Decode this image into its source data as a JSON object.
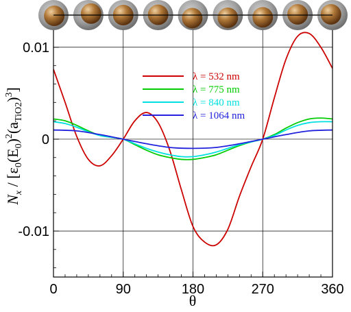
{
  "chart_data": {
    "type": "line",
    "xlabel": "θ",
    "ylabel": "N_x / [ε₀(E₀)²(a_TiO2)³]",
    "ylabel_parts": {
      "lead": "N",
      "lead_sub": "x",
      "mid1": " / [ε",
      "mid1_sub": "0",
      "mid2": "(E",
      "mid2_sub": "0",
      "mid3": ")",
      "mid3_sup": "2",
      "mid4": "(a",
      "mid4_sub": "TiO2",
      "mid5": ")",
      "mid5_sup": "3",
      "tail": "]"
    },
    "xlim": [
      0,
      360
    ],
    "ylim": [
      -0.015,
      0.0135
    ],
    "xticks": [
      0,
      90,
      180,
      270,
      360
    ],
    "xtick_labels": [
      "0",
      "90",
      "180",
      "270",
      "360"
    ],
    "yticks": [
      0.01,
      0,
      -0.01
    ],
    "ytick_labels": [
      "0.01",
      "0",
      "-0.01"
    ],
    "grid": true,
    "legend_position": "upper-center",
    "series": [
      {
        "name": "λ =  532 nm",
        "color": "#cc0000",
        "x": [
          0,
          15,
          30,
          45,
          60,
          75,
          90,
          105,
          120,
          135,
          150,
          165,
          180,
          195,
          210,
          225,
          240,
          255,
          270,
          285,
          300,
          315,
          330,
          345,
          360
        ],
        "y": [
          0.0076,
          0.004,
          0.0003,
          -0.0022,
          -0.0029,
          -0.0018,
          0.0,
          0.002,
          0.0029,
          0.0018,
          -0.0012,
          -0.0055,
          -0.0095,
          -0.0112,
          -0.0115,
          -0.0098,
          -0.0062,
          -0.003,
          0.0,
          0.0045,
          0.0087,
          0.0112,
          0.0115,
          0.01,
          0.0077
        ]
      },
      {
        "name": "λ = 775 nm",
        "color": "#00cc00",
        "x": [
          0,
          15,
          30,
          45,
          60,
          75,
          90,
          105,
          120,
          135,
          150,
          165,
          180,
          195,
          210,
          225,
          240,
          255,
          270,
          285,
          300,
          315,
          330,
          345,
          360
        ],
        "y": [
          0.0022,
          0.002,
          0.0015,
          0.0009,
          0.0004,
          0.0002,
          0.0,
          -0.0006,
          -0.0012,
          -0.0017,
          -0.002,
          -0.0022,
          -0.0022,
          -0.002,
          -0.0017,
          -0.0012,
          -0.0007,
          -0.0003,
          0.0,
          0.0005,
          0.0012,
          0.0018,
          0.0022,
          0.0023,
          0.0022
        ]
      },
      {
        "name": "λ = 840 nm",
        "color": "#00e0e0",
        "x": [
          0,
          15,
          30,
          45,
          60,
          75,
          90,
          105,
          120,
          135,
          150,
          165,
          180,
          195,
          210,
          225,
          240,
          255,
          270,
          285,
          300,
          315,
          330,
          345,
          360
        ],
        "y": [
          0.0019,
          0.0017,
          0.0013,
          0.0008,
          0.0004,
          0.0002,
          0.0,
          -0.0005,
          -0.001,
          -0.0014,
          -0.0017,
          -0.0019,
          -0.0019,
          -0.0017,
          -0.0014,
          -0.001,
          -0.0006,
          -0.0003,
          0.0,
          0.0004,
          0.001,
          0.0015,
          0.0018,
          0.0019,
          0.0019
        ]
      },
      {
        "name": "λ = 1064 nm",
        "color": "#2222dd",
        "x": [
          0,
          30,
          60,
          90,
          120,
          150,
          180,
          210,
          240,
          270,
          300,
          330,
          360
        ],
        "y": [
          0.001,
          0.0009,
          0.0005,
          0.0,
          -0.0005,
          -0.0009,
          -0.001,
          -0.0009,
          -0.0005,
          0.0,
          0.0005,
          0.0009,
          0.001
        ]
      }
    ],
    "sphere_markers": [
      {
        "x": 0,
        "shell_color": "#9a9a9a",
        "core_color": "#b07838",
        "offset": [
          0.05,
          0.05
        ]
      },
      {
        "x": 45,
        "shell_color": "#9a9a9a",
        "core_color": "#b07838",
        "offset": [
          0.18,
          -0.1
        ]
      },
      {
        "x": 90,
        "shell_color": "#9a9a9a",
        "core_color": "#b07838",
        "offset": [
          0.0,
          0.0
        ]
      },
      {
        "x": 135,
        "shell_color": "#9a9a9a",
        "core_color": "#b07838",
        "offset": [
          0.0,
          -0.02
        ]
      },
      {
        "x": 180,
        "shell_color": "#9a9a9a",
        "core_color": "#b07838",
        "offset": [
          -0.05,
          0.2
        ]
      },
      {
        "x": 225,
        "shell_color": "#9a9a9a",
        "core_color": "#b07838",
        "offset": [
          0.0,
          0.18
        ]
      },
      {
        "x": 270,
        "shell_color": "#9a9a9a",
        "core_color": "#b07838",
        "offset": [
          0.0,
          0.15
        ]
      },
      {
        "x": 315,
        "shell_color": "#9a9a9a",
        "core_color": "#b07838",
        "offset": [
          0.0,
          -0.05
        ]
      },
      {
        "x": 360,
        "shell_color": "#9a9a9a",
        "core_color": "#b07838",
        "offset": [
          -0.1,
          -0.05
        ]
      }
    ]
  }
}
